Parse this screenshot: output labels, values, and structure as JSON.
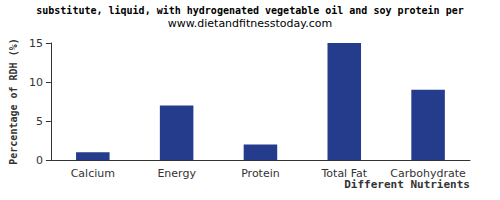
{
  "chart_data": {
    "type": "bar",
    "title": "substitute, liquid, with hydrogenated vegetable oil and soy protein per",
    "subtitle": "www.dietandfitnesstoday.com",
    "x_label": "Different Nutrients",
    "y_label": "Percentage of RDH (%)",
    "categories": [
      "Calcium",
      "Energy",
      "Protein",
      "Total Fat",
      "Carbohydrate"
    ],
    "values": [
      1,
      7,
      2,
      15,
      9
    ],
    "color": "#243c8b",
    "ylim": [
      0,
      15
    ],
    "yticks": [
      0,
      5,
      10,
      15
    ],
    "grid": false
  }
}
